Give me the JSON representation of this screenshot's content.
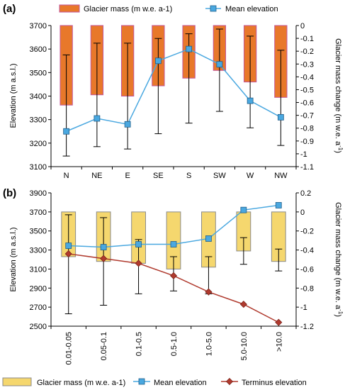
{
  "chart_data": [
    {
      "panel_label": "(a)",
      "type": "bar",
      "categories": [
        "N",
        "NE",
        "E",
        "SE",
        "S",
        "SW",
        "W",
        "NW"
      ],
      "ylabel": "Elevation (m a.s.l.)",
      "y2label": "Glacier mass change (m w.e. a",
      "y2label_sup": "-1",
      "y2label_end": ")",
      "ylim": [
        3100,
        3700
      ],
      "yticks": [
        3100,
        3200,
        3300,
        3400,
        3500,
        3600,
        3700
      ],
      "y2lim": [
        -1.1,
        0
      ],
      "y2ticks": [
        0,
        -0.1,
        -0.2,
        -0.3,
        -0.4,
        -0.5,
        -0.6,
        -0.7,
        -0.8,
        -0.9,
        -1,
        -1.1
      ],
      "legend": [
        "Glacier mass (m w.e. a-1)",
        "Mean elevation"
      ],
      "series": [
        {
          "name": "Glacier mass (m w.e. a-1)",
          "axis": "right",
          "kind": "bar",
          "color": "#E8782A",
          "values": [
            -0.62,
            -0.54,
            -0.55,
            -0.47,
            -0.41,
            -0.35,
            -0.44,
            -0.56
          ]
        },
        {
          "name": "Mean elevation",
          "axis": "left",
          "kind": "line",
          "color": "#4AA8E0",
          "values": [
            3250,
            3305,
            3280,
            3550,
            3600,
            3535,
            3380,
            3310
          ],
          "err_low": [
            3145,
            3185,
            3175,
            3240,
            3285,
            3335,
            3265,
            3190
          ],
          "err_high": [
            3575,
            3625,
            3625,
            3645,
            3665,
            3685,
            3655,
            3595
          ]
        }
      ]
    },
    {
      "panel_label": "(b)",
      "type": "bar",
      "categories": [
        "0.01-0.05",
        "0.05-0.1",
        "0.1-0.5",
        "0.5-1.0",
        "1.0-5.0",
        "5.0-10.0",
        ">10.0"
      ],
      "ylabel": "Elevation (m a.s.l.)",
      "y2label": "Glacier mass change (m w.e. a",
      "y2label_sup": "-1",
      "y2label_end": ")",
      "ylim": [
        2500,
        3900
      ],
      "yticks": [
        2500,
        2700,
        2900,
        3100,
        3300,
        3500,
        3700,
        3900
      ],
      "y2lim": [
        -1.2,
        0.2
      ],
      "y2ticks": [
        0.2,
        0,
        -0.2,
        -0.4,
        -0.6,
        -0.8,
        -1,
        -1.2
      ],
      "legend": [
        "Glacier mass (m w.e. a-1)",
        "Mean elevation",
        "Terminus elevation"
      ],
      "series": [
        {
          "name": "Glacier mass (m w.e. a-1)",
          "axis": "right",
          "kind": "bar",
          "color": "#F5D76E",
          "values": [
            -0.47,
            -0.52,
            -0.54,
            -0.6,
            -0.58,
            -0.41,
            -0.52
          ]
        },
        {
          "name": "Mean elevation",
          "axis": "left",
          "kind": "line",
          "color": "#4AA8E0",
          "values": [
            3345,
            3330,
            3360,
            3360,
            3420,
            3720,
            3770
          ]
        },
        {
          "name": "Terminus elevation",
          "axis": "left",
          "kind": "line",
          "color": "#B03A2E",
          "values": [
            3260,
            3210,
            3160,
            3030,
            2860,
            2730,
            2540
          ]
        }
      ],
      "mass_err_low": [
        -1.07,
        -0.98,
        -0.86,
        -0.83,
        -0.86,
        -0.55,
        -0.62
      ],
      "mass_err_high": [
        -0.03,
        -0.06,
        -0.29,
        -0.47,
        -0.47,
        -0.27,
        -0.39
      ]
    }
  ]
}
